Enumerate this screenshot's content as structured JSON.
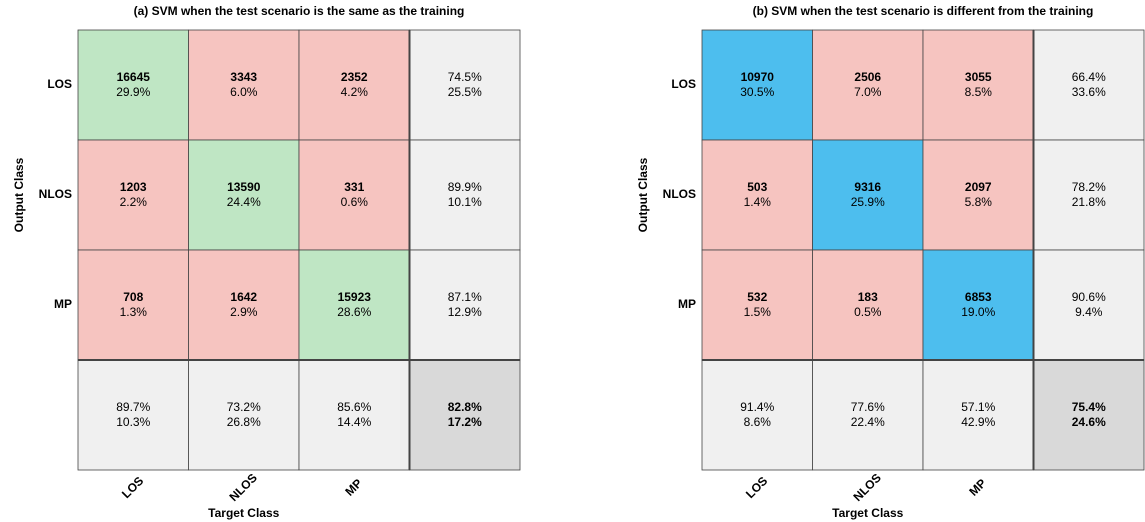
{
  "panels": [
    {
      "title": "(a) SVM when the test scenario is the same as the training",
      "x_label": "Target Class",
      "y_label": "Output Class",
      "classes": [
        "LOS",
        "NLOS",
        "MP"
      ],
      "diagonal_color": "#bfe6c4",
      "off_diagonal_color": "#f6c4c0",
      "correct_color": "#3aa63a",
      "incorrect_color": "#e0403a",
      "cells": [
        [
          {
            "count": 16645,
            "percent": "29.9%"
          },
          {
            "count": 3343,
            "percent": "6.0%"
          },
          {
            "count": 2352,
            "percent": "4.2%"
          }
        ],
        [
          {
            "count": 1203,
            "percent": "2.2%"
          },
          {
            "count": 13590,
            "percent": "24.4%"
          },
          {
            "count": 331,
            "percent": "0.6%"
          }
        ],
        [
          {
            "count": 708,
            "percent": "1.3%"
          },
          {
            "count": 1642,
            "percent": "2.9%"
          },
          {
            "count": 15923,
            "percent": "28.6%"
          }
        ]
      ],
      "row_summary": [
        {
          "correct": "74.5%",
          "incorrect": "25.5%"
        },
        {
          "correct": "89.9%",
          "incorrect": "10.1%"
        },
        {
          "correct": "87.1%",
          "incorrect": "12.9%"
        }
      ],
      "column_summary": [
        {
          "correct": "89.7%",
          "incorrect": "10.3%"
        },
        {
          "correct": "73.2%",
          "incorrect": "26.8%"
        },
        {
          "correct": "85.6%",
          "incorrect": "14.4%"
        }
      ],
      "total": {
        "correct": "82.8%",
        "incorrect": "17.2%"
      }
    },
    {
      "title": "(b) SVM when the test scenario is different from the training",
      "x_label": "Target Class",
      "y_label": "Output Class",
      "classes": [
        "LOS",
        "NLOS",
        "MP"
      ],
      "diagonal_color": "#4dbeee",
      "off_diagonal_color": "#f6c4c0",
      "correct_color": "#1f7ac2",
      "incorrect_color": "#e0403a",
      "cells": [
        [
          {
            "count": 10970,
            "percent": "30.5%"
          },
          {
            "count": 2506,
            "percent": "7.0%"
          },
          {
            "count": 3055,
            "percent": "8.5%"
          }
        ],
        [
          {
            "count": 503,
            "percent": "1.4%"
          },
          {
            "count": 9316,
            "percent": "25.9%"
          },
          {
            "count": 2097,
            "percent": "5.8%"
          }
        ],
        [
          {
            "count": 532,
            "percent": "1.5%"
          },
          {
            "count": 183,
            "percent": "0.5%"
          },
          {
            "count": 6853,
            "percent": "19.0%"
          }
        ]
      ],
      "row_summary": [
        {
          "correct": "66.4%",
          "incorrect": "33.6%"
        },
        {
          "correct": "78.2%",
          "incorrect": "21.8%"
        },
        {
          "correct": "90.6%",
          "incorrect": "9.4%"
        }
      ],
      "column_summary": [
        {
          "correct": "91.4%",
          "incorrect": "8.6%"
        },
        {
          "correct": "77.6%",
          "incorrect": "22.4%"
        },
        {
          "correct": "57.1%",
          "incorrect": "42.9%"
        }
      ],
      "total": {
        "correct": "75.4%",
        "incorrect": "24.6%"
      }
    }
  ]
}
